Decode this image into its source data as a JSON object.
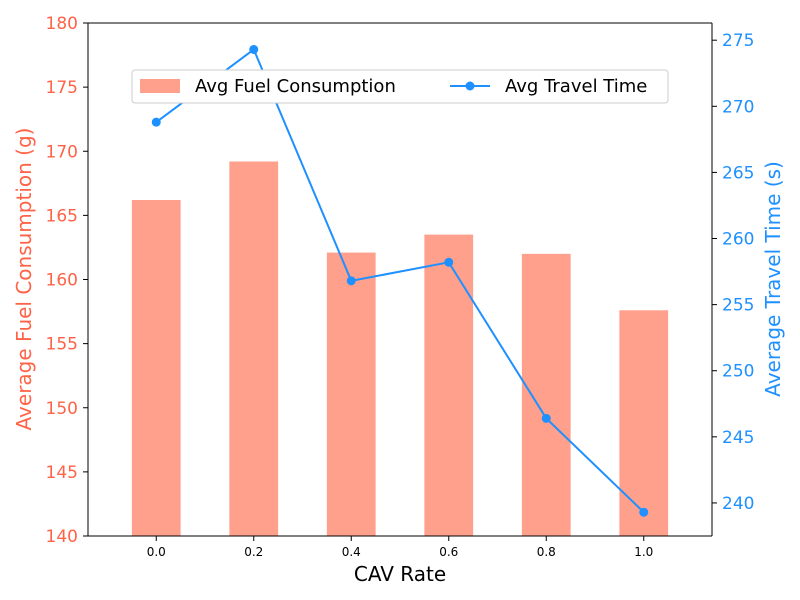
{
  "chart_data": {
    "type": "bar+line",
    "xlabel": "CAV Rate",
    "categories": [
      "0.0",
      "0.2",
      "0.4",
      "0.6",
      "0.8",
      "1.0"
    ],
    "series": [
      {
        "name": "Avg Fuel Consumption",
        "type": "bar",
        "axis": "left",
        "color": "#ffa08c",
        "values": [
          166.2,
          169.2,
          162.1,
          163.5,
          162.0,
          157.6
        ]
      },
      {
        "name": "Avg Travel Time",
        "type": "line",
        "axis": "right",
        "color": "#1e90ff",
        "values": [
          268.8,
          274.3,
          256.8,
          258.2,
          246.4,
          239.3
        ]
      }
    ],
    "left_axis": {
      "label": "Average Fuel Consumption (g)",
      "color": "#ff6347",
      "ylim": [
        140,
        180
      ],
      "ticks": [
        "140",
        "145",
        "150",
        "155",
        "160",
        "165",
        "170",
        "175",
        "180"
      ]
    },
    "right_axis": {
      "label": "Average Travel Time (s)",
      "color": "#1e90ff",
      "ylim": [
        237.5,
        276.3
      ],
      "ticks": [
        "240",
        "245",
        "250",
        "255",
        "260",
        "265",
        "270",
        "275"
      ]
    },
    "legend": {
      "placement": "upper-center",
      "columns": 2
    },
    "grid": false
  }
}
